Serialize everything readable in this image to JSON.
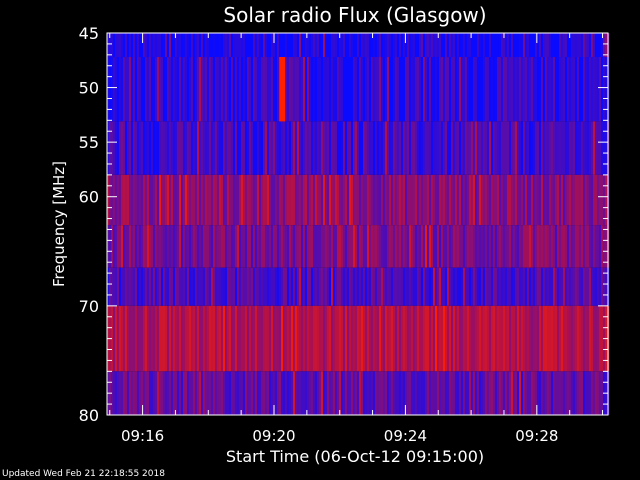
{
  "footer": {
    "updated": "Updated Wed Feb 21 22:18:55 2018"
  },
  "chart_data": {
    "type": "heatmap",
    "title": "Solar radio Flux (Glasgow)",
    "xlabel": "Start Time (06-Oct-12 09:15:00)",
    "ylabel": "Frequency [MHz]",
    "xlim": [
      "09:14:55",
      "09:30:10"
    ],
    "ylim": [
      45,
      80
    ],
    "y_reversed": true,
    "x_ticks": [
      "09:16",
      "09:20",
      "09:24",
      "09:28"
    ],
    "y_ticks": [
      45,
      50,
      55,
      60,
      70,
      80
    ],
    "colors": {
      "low": "#0a0aff",
      "mid": "#b0104a",
      "high": "#ff2000",
      "axis": "#ffffff",
      "background": "#000000"
    },
    "bands": [
      {
        "freq_from": 45.0,
        "freq_to": 47.2,
        "level": 0.05
      },
      {
        "freq_from": 47.2,
        "freq_to": 53.1,
        "level": 0.12
      },
      {
        "freq_from": 53.1,
        "freq_to": 58.0,
        "level": 0.18
      },
      {
        "freq_from": 58.0,
        "freq_to": 62.6,
        "level": 0.45
      },
      {
        "freq_from": 62.6,
        "freq_to": 66.5,
        "level": 0.38
      },
      {
        "freq_from": 66.5,
        "freq_to": 70.0,
        "level": 0.22
      },
      {
        "freq_from": 70.0,
        "freq_to": 76.0,
        "level": 0.62
      },
      {
        "freq_from": 76.0,
        "freq_to": 80.0,
        "level": 0.3
      }
    ],
    "burst": {
      "time": "09:20:15",
      "freq_from": 47.2,
      "freq_to": 53.1,
      "level": 1.0
    }
  }
}
